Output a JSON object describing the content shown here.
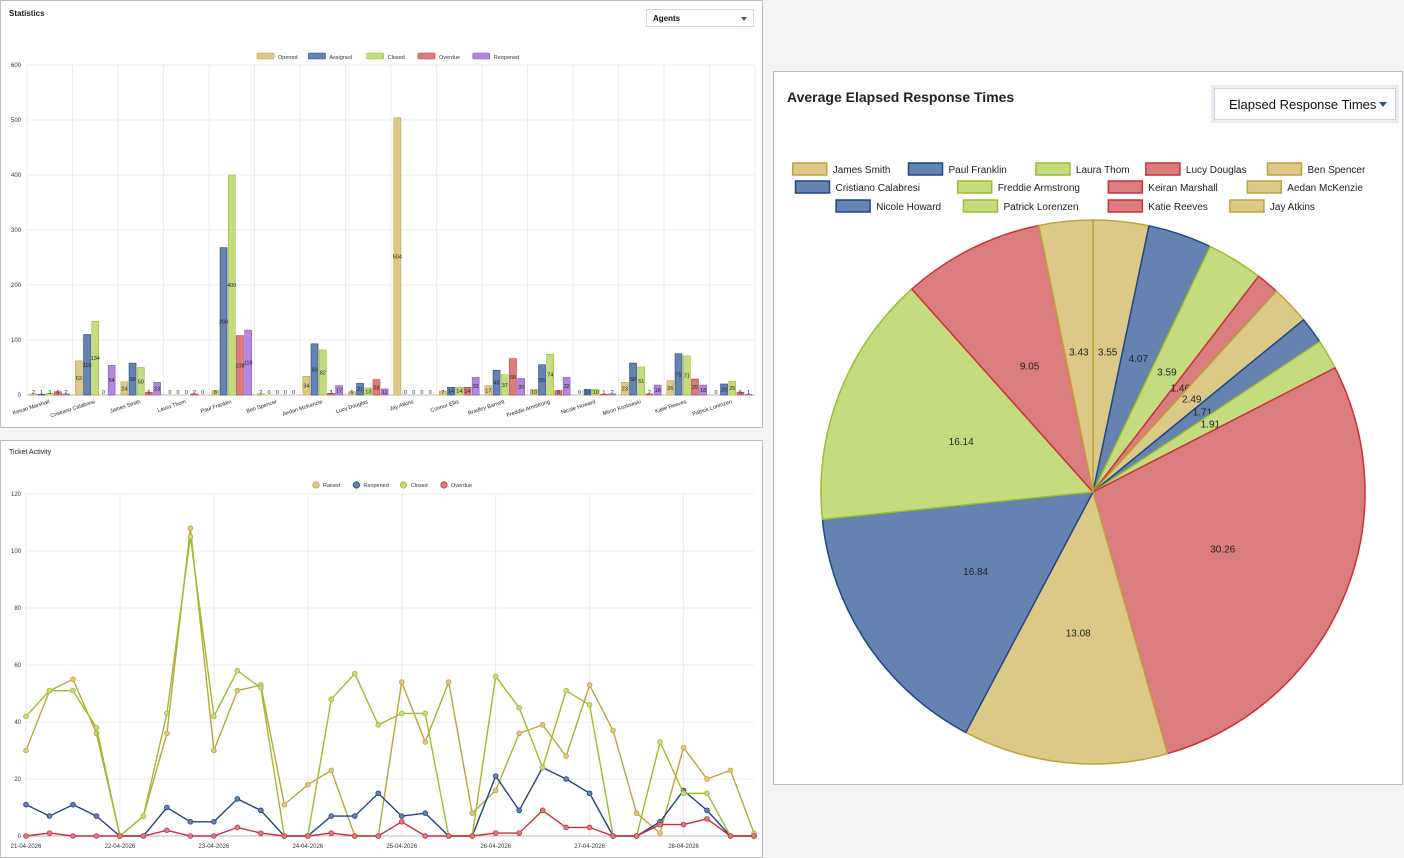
{
  "stats_panel": {
    "title": "Statistics",
    "dropdown_value": "Agents"
  },
  "activity_panel": {
    "title": "Ticket Activity"
  },
  "pie_panel": {
    "title": "Average Elapsed Response Times",
    "dropdown_value": "Elapsed Response Times"
  },
  "colors": {
    "tan": "#dcc987",
    "tan_border": "#bda43a",
    "blue": "#6582b0",
    "blue_border": "#1f4686",
    "green": "#c5db80",
    "green_border": "#9cbd2e",
    "red": "#d97d7f",
    "red_border": "#cc3038",
    "purple": "#b188dd",
    "purple_border": "#8a55c4"
  },
  "chart_data": [
    {
      "type": "bar",
      "categories": [
        "Keiran Marshall",
        "Cristiano Calabresi",
        "James Smith",
        "Laura Thom",
        "Paul Franklin",
        "Ben Spencer",
        "Aedan McKenzie",
        "Lucy Douglas",
        "Jay Atkins",
        "Connor Ellis",
        "Bradley Barnett",
        "Freddie Armstrong",
        "Nicole Howard",
        "Miron Kozlowski",
        "Katie Reeves",
        "Patrick Lorenzen"
      ],
      "series": [
        {
          "name": "Opened",
          "color": "tan",
          "values": [
            2,
            62,
            24,
            0,
            8,
            2,
            34,
            6,
            504,
            7,
            17,
            10,
            0,
            23,
            26,
            0
          ]
        },
        {
          "name": "Assigned",
          "color": "blue",
          "values": [
            1,
            110,
            58,
            0,
            268,
            0,
            93,
            21,
            0,
            14,
            45,
            55,
            10,
            58,
            75,
            20
          ]
        },
        {
          "name": "Closed",
          "color": "green",
          "values": [
            3,
            134,
            50,
            0,
            400,
            0,
            82,
            13,
            0,
            14,
            37,
            74,
            10,
            51,
            71,
            25
          ]
        },
        {
          "name": "Overdue",
          "color": "red",
          "values": [
            6,
            0,
            5,
            2,
            108,
            0,
            3,
            28,
            0,
            14,
            66,
            8,
            1,
            2,
            29,
            5
          ]
        },
        {
          "name": "Reopened",
          "color": "purple",
          "values": [
            2,
            54,
            23,
            0,
            118,
            0,
            17,
            11,
            0,
            32,
            30,
            32,
            2,
            18,
            18,
            1
          ]
        }
      ],
      "data_labels": [
        [
          "2",
          "1",
          "3",
          "6",
          "2"
        ],
        [
          "62",
          "110",
          "134",
          "0",
          "54"
        ],
        [
          "24",
          "58",
          "50",
          "5",
          "23"
        ],
        [
          "0",
          "0",
          "0",
          "2",
          "0"
        ],
        [
          "8",
          "268",
          "400",
          "108",
          "118"
        ],
        [
          "2",
          "0",
          "0",
          "0",
          "0"
        ],
        [
          "34",
          "93",
          "82",
          "3",
          "17"
        ],
        [
          "6",
          "21",
          "13",
          "28",
          "11"
        ],
        [
          "504",
          "0",
          "0",
          "0",
          "0"
        ],
        [
          "7",
          "14",
          "14",
          "14",
          "32"
        ],
        [
          "17",
          "45",
          "37",
          "66",
          "30"
        ],
        [
          "10",
          "55",
          "74",
          "8",
          "32"
        ],
        [
          "0",
          "10",
          "10",
          "1",
          "2"
        ],
        [
          "23",
          "58",
          "51",
          "2",
          "18"
        ],
        [
          "26",
          "75",
          "71",
          "29",
          "18"
        ],
        [
          "0",
          "20",
          "25",
          "5",
          "1"
        ]
      ],
      "ylim": [
        0,
        600
      ],
      "yticks": [
        0,
        100,
        200,
        300,
        400,
        500,
        600
      ],
      "grid": true,
      "legend_position": "top"
    },
    {
      "type": "line",
      "x_tick_labels": [
        "21-04-2026",
        "22-04-2026",
        "23-04-2026",
        "24-04-2026",
        "25-04-2026",
        "26-04-2026",
        "27-04-2026",
        "28-04-2026"
      ],
      "points_per_day": 4,
      "series": [
        {
          "name": "Raised",
          "color": "tan",
          "values": [
            30,
            51,
            55,
            36,
            0,
            7,
            36,
            108,
            30,
            51,
            53,
            11,
            18,
            23,
            0,
            0,
            54,
            33,
            54,
            8,
            16,
            36,
            39,
            28,
            53,
            37,
            8,
            1,
            31,
            20,
            23,
            1
          ]
        },
        {
          "name": "Reopened",
          "color": "blue",
          "values": [
            11,
            7,
            11,
            7,
            0,
            0,
            10,
            5,
            5,
            13,
            9,
            0,
            0,
            7,
            7,
            15,
            7,
            8,
            0,
            0,
            21,
            9,
            24,
            20,
            15,
            0,
            0,
            5,
            16,
            9,
            0,
            0
          ]
        },
        {
          "name": "Closed",
          "color": "green",
          "values": [
            42,
            51,
            51,
            38,
            0,
            7,
            43,
            105,
            42,
            58,
            52,
            0,
            0,
            48,
            57,
            39,
            43,
            43,
            0,
            0,
            56,
            45,
            24,
            51,
            46,
            0,
            0,
            33,
            15,
            15,
            0,
            0
          ]
        },
        {
          "name": "Overdue",
          "color": "red",
          "values": [
            0,
            1,
            0,
            0,
            0,
            0,
            2,
            0,
            0,
            3,
            1,
            0,
            0,
            1,
            0,
            0,
            5,
            0,
            0,
            0,
            1,
            1,
            9,
            3,
            3,
            0,
            0,
            4,
            4,
            6,
            0,
            0
          ]
        }
      ],
      "ylim": [
        0,
        120
      ],
      "yticks": [
        0,
        20,
        40,
        60,
        80,
        100,
        120
      ],
      "grid": true,
      "legend_position": "top"
    },
    {
      "type": "pie",
      "title": "Average Elapsed Response Times",
      "legend_rows": [
        [
          "James Smith",
          "Paul Franklin",
          "Laura Thom",
          "Lucy Douglas",
          "Ben Spencer"
        ],
        [
          "Cristiano Calabresi",
          "Freddie Armstrong",
          "Keiran Marshall",
          "Aedan McKenzie"
        ],
        [
          "Nicole Howard",
          "Patrick Lorenzen",
          "Katie Reeves",
          "Jay Atkins"
        ]
      ],
      "slices": [
        {
          "name": "James Smith",
          "value": 3.55,
          "color": "tan"
        },
        {
          "name": "Paul Franklin",
          "value": 4.07,
          "color": "blue"
        },
        {
          "name": "Laura Thom",
          "value": 3.59,
          "color": "green"
        },
        {
          "name": "Lucy Douglas",
          "value": 1.46,
          "color": "red"
        },
        {
          "name": "Ben Spencer",
          "value": 2.49,
          "color": "tan"
        },
        {
          "name": "Cristiano Calabresi",
          "value": 1.71,
          "color": "blue"
        },
        {
          "name": "Freddie Armstrong",
          "value": 1.91,
          "color": "green"
        },
        {
          "name": "Keiran Marshall",
          "value": 30.26,
          "color": "red"
        },
        {
          "name": "Aedan McKenzie",
          "value": 13.08,
          "color": "tan"
        },
        {
          "name": "Nicole Howard",
          "value": 16.84,
          "color": "blue"
        },
        {
          "name": "Patrick Lorenzen",
          "value": 16.14,
          "color": "green"
        },
        {
          "name": "Katie Reeves",
          "value": 9.05,
          "color": "red"
        },
        {
          "name": "Jay Atkins",
          "value": 3.43,
          "color": "tan"
        }
      ],
      "legend_position": "top"
    }
  ]
}
